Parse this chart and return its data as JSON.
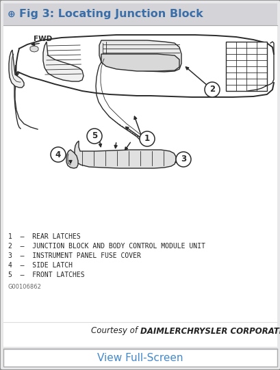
{
  "title_text": "Fig 3: Locating Junction Block",
  "title_icon": "⨁",
  "title_bg": "#d4d4d8",
  "title_fg": "#3a6ea8",
  "title_icon_color": "#3a6ea8",
  "body_bg": "#ffffff",
  "outer_bg": "#c8c8cc",
  "border_color": "#999999",
  "legend_lines": [
    "1  –  REAR LATCHES",
    "2  –  JUNCTION BLOCK AND BODY CONTROL MODULE UNIT",
    "3  –  INSTRUMENT PANEL FUSE COVER",
    "4  –  SIDE LATCH",
    "5  –  FRONT LATCHES"
  ],
  "legend_fontsize": 7.0,
  "part_number": "G00106862",
  "courtesy_pre": "Courtesy of ",
  "courtesy_bold": "DAIMLERCHRYSLER CORPORATION",
  "courtesy_color": "#222222",
  "footer_text": "View Full-Screen",
  "footer_color": "#4488cc",
  "footer_bg": "#ffffff",
  "diagram_line_color": "#2a2a2a",
  "diagram_bg": "#ffffff"
}
